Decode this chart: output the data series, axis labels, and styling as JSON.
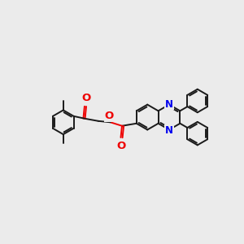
{
  "bg_color": "#ebebeb",
  "bond_color": "#1a1a1a",
  "n_color": "#0000ee",
  "o_color": "#ee0000",
  "lw": 1.4,
  "fs": 8.5,
  "figsize": [
    3.0,
    3.0
  ],
  "dpi": 100,
  "xlim": [
    0,
    10
  ],
  "ylim": [
    0,
    10
  ]
}
